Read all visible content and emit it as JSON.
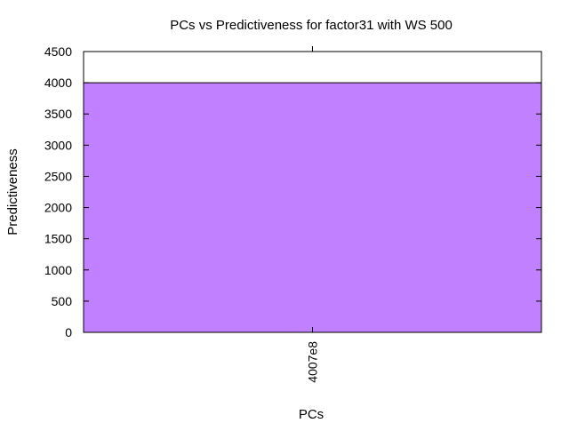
{
  "chart_data": {
    "type": "bar",
    "title": "PCs vs Predictiveness for factor31 with WS 500",
    "xlabel": "PCs",
    "ylabel": "Predictiveness",
    "categories": [
      "4007e8"
    ],
    "values": [
      4000
    ],
    "ylim": [
      0,
      4500
    ],
    "yticks": [
      0,
      500,
      1000,
      1500,
      2000,
      2500,
      3000,
      3500,
      4000,
      4500
    ],
    "grid": false,
    "bar_color": "#c080ff",
    "bar_edge_color": "#000000"
  }
}
